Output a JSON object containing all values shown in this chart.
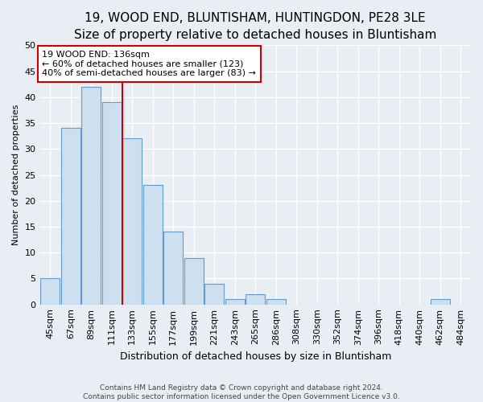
{
  "title": "19, WOOD END, BLUNTISHAM, HUNTINGDON, PE28 3LE",
  "subtitle": "Size of property relative to detached houses in Bluntisham",
  "xlabel": "Distribution of detached houses by size in Bluntisham",
  "ylabel": "Number of detached properties",
  "categories": [
    "45sqm",
    "67sqm",
    "89sqm",
    "111sqm",
    "133sqm",
    "155sqm",
    "177sqm",
    "199sqm",
    "221sqm",
    "243sqm",
    "265sqm",
    "286sqm",
    "308sqm",
    "330sqm",
    "352sqm",
    "374sqm",
    "396sqm",
    "418sqm",
    "440sqm",
    "462sqm",
    "484sqm"
  ],
  "values": [
    5,
    34,
    42,
    39,
    32,
    23,
    14,
    9,
    4,
    1,
    2,
    1,
    0,
    0,
    0,
    0,
    0,
    0,
    0,
    1,
    0
  ],
  "bar_color": "#cce0f0",
  "bar_edge_color": "#6699cc",
  "property_line_x": 3.5,
  "annotation_line1": "19 WOOD END: 136sqm",
  "annotation_line2": "← 60% of detached houses are smaller (123)",
  "annotation_line3": "40% of semi-detached houses are larger (83) →",
  "annotation_box_color": "#ffffff",
  "annotation_box_edge": "#cc0000",
  "ylim": [
    0,
    50
  ],
  "yticks": [
    0,
    5,
    10,
    15,
    20,
    25,
    30,
    35,
    40,
    45,
    50
  ],
  "footer1": "Contains HM Land Registry data © Crown copyright and database right 2024.",
  "footer2": "Contains public sector information licensed under the Open Government Licence v3.0.",
  "bg_color": "#e8eef4",
  "grid_color": "#ffffff",
  "title_fontsize": 11,
  "subtitle_fontsize": 10,
  "xlabel_fontsize": 9,
  "ylabel_fontsize": 8,
  "tick_fontsize": 8,
  "annot_fontsize": 8
}
